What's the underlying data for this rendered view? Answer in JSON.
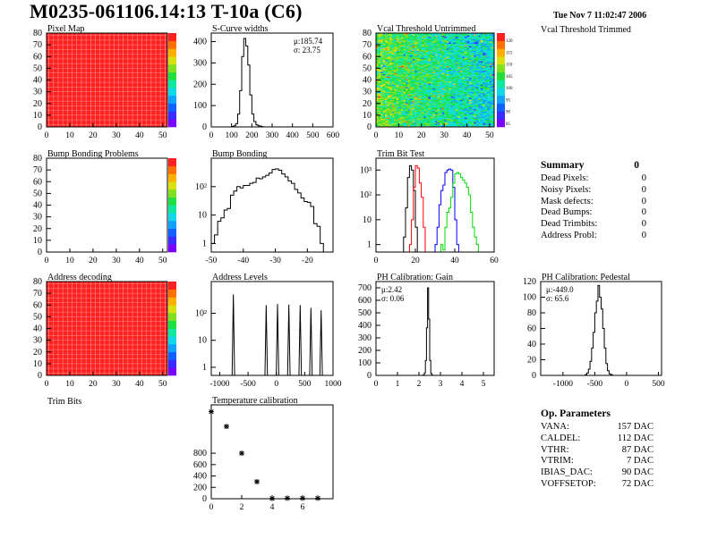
{
  "header": {
    "title": "M0235-061106.14:13 T-10a (C6)",
    "date": "Tue Nov  7 11:02:47 2006"
  },
  "labels": {
    "trim_bits": "Trim Bits",
    "vcal_trimmed": "Vcal Threshold Trimmed"
  },
  "summary": {
    "title": "Summary",
    "total": "0",
    "rows": [
      {
        "label": "Dead Pixels:",
        "value": "0"
      },
      {
        "label": "Noisy Pixels:",
        "value": "0"
      },
      {
        "label": "Mask defects:",
        "value": "0"
      },
      {
        "label": "Dead Bumps:",
        "value": "0"
      },
      {
        "label": "Dead Trimbits:",
        "value": "0"
      },
      {
        "label": "Address Probl:",
        "value": "0"
      }
    ]
  },
  "op_params": {
    "title": "Op. Parameters",
    "rows": [
      {
        "label": "VANA:",
        "value": "157 DAC"
      },
      {
        "label": "CALDEL:",
        "value": "112 DAC"
      },
      {
        "label": "VTHR:",
        "value": "87 DAC"
      },
      {
        "label": "VTRIM:",
        "value": "7 DAC"
      },
      {
        "label": "IBIAS_DAC:",
        "value": "90 DAC"
      },
      {
        "label": "VOFFSETOP:",
        "value": "72 DAC"
      }
    ]
  },
  "colors": {
    "black": "#000000",
    "red": "#ff0000",
    "blue": "#0000ff",
    "green": "#00dd00",
    "map_red": "#ff2020"
  },
  "chart_data": {
    "pixel_map": {
      "type": "heatmap",
      "title": "Pixel Map",
      "xlim": [
        0,
        52
      ],
      "ylim": [
        0,
        80
      ],
      "xticks": [
        0,
        10,
        20,
        30,
        40,
        50
      ],
      "yticks": [
        0,
        10,
        20,
        30,
        40,
        50,
        60,
        70,
        80
      ],
      "zlim": [
        0,
        10
      ],
      "fill": "uniform-max",
      "colorbar": true
    },
    "scurve": {
      "type": "bar",
      "title": "S-Curve widths",
      "xlim": [
        0,
        600
      ],
      "ylim": [
        0,
        440
      ],
      "xticks": [
        0,
        100,
        200,
        300,
        400,
        500,
        600
      ],
      "yticks": [
        0,
        100,
        200,
        300,
        400
      ],
      "stats": [
        "μ:185.74",
        "σ: 23.75"
      ],
      "series": [
        {
          "name": "widths",
          "color": "#000000",
          "x0": 100,
          "bin": 10,
          "values": [
            2,
            5,
            15,
            60,
            170,
            330,
            415,
            380,
            290,
            150,
            60,
            25,
            10,
            5,
            3,
            1,
            0
          ]
        }
      ]
    },
    "vcal_untrimmed": {
      "type": "heatmap",
      "title": "Vcal Threshold Untrimmed",
      "xlim": [
        0,
        52
      ],
      "ylim": [
        0,
        80
      ],
      "xticks": [
        0,
        10,
        20,
        30,
        40,
        50
      ],
      "yticks": [
        0,
        10,
        20,
        30,
        40,
        50,
        60,
        70,
        80
      ],
      "zlim": [
        82,
        125
      ],
      "fill": "noisy",
      "colorbar": true,
      "colorbar_ticks": [
        "120",
        "115",
        "110",
        "105",
        "100",
        "95",
        "90",
        "85"
      ]
    },
    "bump_problems": {
      "type": "heatmap",
      "title": "Bump Bonding Problems",
      "xlim": [
        0,
        52
      ],
      "ylim": [
        0,
        80
      ],
      "xticks": [
        0,
        10,
        20,
        30,
        40,
        50
      ],
      "yticks": [
        0,
        10,
        20,
        30,
        40,
        50,
        60,
        70,
        80
      ],
      "fill": "empty",
      "colorbar": true
    },
    "bump_bonding": {
      "type": "bar",
      "title": "Bump Bonding",
      "log": true,
      "xlim": [
        -50,
        -12
      ],
      "ylim": [
        0.5,
        1000
      ],
      "xticks": [
        -50,
        -40,
        -30,
        -20
      ],
      "yticks": [
        1,
        10,
        100
      ],
      "ytick_labels": [
        "1",
        "10",
        "10²"
      ],
      "series": [
        {
          "name": "bumps",
          "color": "#000000",
          "x0": -50,
          "bin": 1,
          "values": [
            1,
            2,
            6,
            8,
            15,
            17,
            50,
            70,
            100,
            90,
            110,
            110,
            130,
            140,
            200,
            190,
            220,
            250,
            300,
            400,
            420,
            380,
            280,
            220,
            160,
            130,
            80,
            60,
            40,
            30,
            28,
            20,
            5,
            4,
            1
          ]
        }
      ]
    },
    "trim_bit": {
      "type": "bar",
      "title": "Trim Bit Test",
      "log": true,
      "xlim": [
        0,
        60
      ],
      "ylim": [
        0.5,
        3000
      ],
      "xticks": [
        0,
        20,
        40,
        60
      ],
      "yticks": [
        1,
        10,
        100,
        1000
      ],
      "ytick_labels": [
        "1",
        "10",
        "10²",
        "10³"
      ],
      "series": [
        {
          "name": "trim0",
          "color": "#000000",
          "x0": 14,
          "bin": 1,
          "values": [
            2,
            30,
            500,
            1500,
            1000,
            150,
            5
          ]
        },
        {
          "name": "trim1",
          "color": "#ff0000",
          "x0": 17,
          "bin": 1,
          "values": [
            1,
            10,
            200,
            1500,
            1200,
            300,
            80,
            5
          ]
        },
        {
          "name": "trim2",
          "color": "#0000ff",
          "x0": 30,
          "bin": 1,
          "values": [
            1,
            5,
            40,
            150,
            250,
            800,
            1000,
            1100,
            1000,
            200,
            10,
            1
          ]
        },
        {
          "name": "trim3",
          "color": "#00dd00",
          "x0": 33,
          "bin": 1,
          "values": [
            1,
            0.6,
            5,
            20,
            30,
            80,
            300,
            700,
            800,
            700,
            500,
            400,
            300,
            200,
            100,
            20,
            5,
            2,
            1
          ]
        }
      ]
    },
    "address_decoding": {
      "type": "heatmap",
      "title": "Address decoding",
      "xlim": [
        0,
        52
      ],
      "ylim": [
        0,
        80
      ],
      "xticks": [
        0,
        10,
        20,
        30,
        40,
        50
      ],
      "yticks": [
        0,
        10,
        20,
        30,
        40,
        50,
        60,
        70,
        80
      ],
      "zlim": [
        0,
        1
      ],
      "fill": "uniform-max",
      "colorbar": true
    },
    "address_levels": {
      "type": "bar",
      "title": "Address Levels",
      "log": true,
      "xlim": [
        -1150,
        1000
      ],
      "ylim": [
        0.5,
        1500
      ],
      "xticks": [
        -1000,
        -500,
        0,
        500,
        1000
      ],
      "yticks": [
        1,
        10,
        100
      ],
      "ytick_labels": [
        "1",
        "10",
        "10²"
      ],
      "peaks": [
        {
          "x": -760,
          "y": 500
        },
        {
          "x": -180,
          "y": 200
        },
        {
          "x": 20,
          "y": 220
        },
        {
          "x": 220,
          "y": 210
        },
        {
          "x": 420,
          "y": 200
        },
        {
          "x": 610,
          "y": 160
        },
        {
          "x": 790,
          "y": 130
        }
      ]
    },
    "gain": {
      "type": "bar",
      "title": "PH Calibration: Gain",
      "xlim": [
        0,
        5.5
      ],
      "ylim": [
        0,
        750
      ],
      "xticks": [
        0,
        1,
        2,
        3,
        4,
        5
      ],
      "yticks": [
        0,
        100,
        200,
        300,
        400,
        500,
        600,
        700
      ],
      "stats": [
        "μ:2.42",
        "σ: 0.06"
      ],
      "series": [
        {
          "name": "gain",
          "color": "#000000",
          "x0": 2.15,
          "bin": 0.05,
          "values": [
            1,
            4,
            20,
            120,
            380,
            700,
            450,
            120,
            15,
            2
          ]
        }
      ]
    },
    "pedestal": {
      "type": "bar",
      "title": "PH Calibration: Pedestal",
      "xlim": [
        -1350,
        550
      ],
      "ylim": [
        0,
        120
      ],
      "xticks": [
        -1000,
        -500,
        0,
        500
      ],
      "yticks": [
        0,
        20,
        40,
        60,
        80,
        100,
        120
      ],
      "stats": [
        "μ:-449.0",
        "σ: 65.6"
      ],
      "series": [
        {
          "name": "pedestal",
          "color": "#000000",
          "x0": -650,
          "bin": 25,
          "values": [
            1,
            3,
            8,
            18,
            35,
            55,
            80,
            95,
            115,
            100,
            85,
            60,
            35,
            15,
            6,
            2,
            1
          ]
        }
      ]
    },
    "temperature": {
      "type": "scatter",
      "title": "Temperature calibration",
      "xlim": [
        0,
        8
      ],
      "ylim": [
        0,
        1650
      ],
      "xticks": [
        0,
        2,
        4,
        6
      ],
      "yticks": [
        0,
        200,
        400,
        600,
        800
      ],
      "points": [
        [
          0,
          1530
        ],
        [
          1,
          1270
        ],
        [
          2,
          800
        ],
        [
          3,
          300
        ],
        [
          4,
          5
        ],
        [
          5,
          10
        ],
        [
          6,
          10
        ],
        [
          7,
          10
        ]
      ]
    }
  }
}
